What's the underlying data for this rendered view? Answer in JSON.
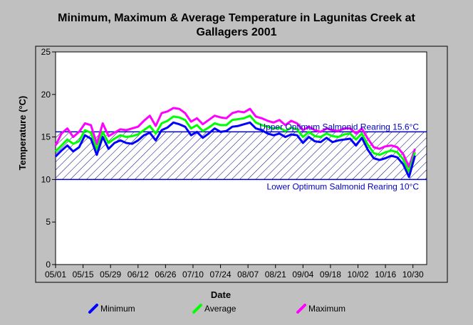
{
  "chart_data": {
    "type": "line",
    "title_lines": [
      "Minimum, Maximum & Average Temperature in Lagunitas Creek at",
      "Gallagers 2001"
    ],
    "xlabel": "Date",
    "ylabel": "Temperature (°C)",
    "ylim": [
      0,
      25
    ],
    "yticks": [
      0,
      5,
      10,
      15,
      20,
      25
    ],
    "xlim": [
      "2001-05-01",
      "2001-11-06"
    ],
    "xticks": [
      "05/01",
      "05/15",
      "05/29",
      "06/12",
      "06/26",
      "07/10",
      "07/24",
      "08/07",
      "08/21",
      "09/04",
      "09/18",
      "10/02",
      "10/16",
      "10/30"
    ],
    "grid": false,
    "legend_position": "bottom",
    "annotations": [
      {
        "text": "Upper Optimum Salmonid Rearing 15.6°C",
        "y": 15.6
      },
      {
        "text": "Lower Optimum Salmonid Rearing 10°C",
        "y": 10
      }
    ],
    "band": {
      "y_low": 10,
      "y_high": 15.6,
      "fill": "hatched",
      "color": "#0000c0"
    },
    "dates": [
      "05/01",
      "05/04",
      "05/07",
      "05/10",
      "05/13",
      "05/16",
      "05/19",
      "05/22",
      "05/25",
      "05/28",
      "05/31",
      "06/03",
      "06/06",
      "06/09",
      "06/12",
      "06/15",
      "06/18",
      "06/21",
      "06/24",
      "06/27",
      "06/30",
      "07/03",
      "07/06",
      "07/09",
      "07/12",
      "07/15",
      "07/18",
      "07/21",
      "07/24",
      "07/27",
      "07/30",
      "08/02",
      "08/05",
      "08/08",
      "08/11",
      "08/14",
      "08/17",
      "08/20",
      "08/23",
      "08/26",
      "08/29",
      "09/01",
      "09/04",
      "09/07",
      "09/10",
      "09/13",
      "09/16",
      "09/19",
      "09/22",
      "09/25",
      "09/28",
      "10/01",
      "10/04",
      "10/07",
      "10/10",
      "10/13",
      "10/16",
      "10/19",
      "10/22",
      "10/25",
      "10/28",
      "10/31"
    ],
    "series": [
      {
        "name": "Minimum",
        "color": "#0000ff",
        "values": [
          12.7,
          13.4,
          14.0,
          13.3,
          13.8,
          15.2,
          14.8,
          12.9,
          15.0,
          13.6,
          14.3,
          14.6,
          14.3,
          14.2,
          14.6,
          15.2,
          15.5,
          14.6,
          15.8,
          16.1,
          16.7,
          16.5,
          16.2,
          15.2,
          15.6,
          14.9,
          15.4,
          16.0,
          15.6,
          15.7,
          16.2,
          16.3,
          16.5,
          16.7,
          16.0,
          15.8,
          15.4,
          15.2,
          15.4,
          15.0,
          15.3,
          15.2,
          14.3,
          15.0,
          14.5,
          14.4,
          14.9,
          14.4,
          14.6,
          14.7,
          14.8,
          14.0,
          14.9,
          13.5,
          12.5,
          12.3,
          12.5,
          12.8,
          12.6,
          11.8,
          10.3,
          12.8
        ]
      },
      {
        "name": "Average",
        "color": "#00ff00",
        "values": [
          13.3,
          14.0,
          14.7,
          14.2,
          14.5,
          15.8,
          15.5,
          13.5,
          15.6,
          14.3,
          14.8,
          15.2,
          15.0,
          15.1,
          15.3,
          15.8,
          16.3,
          15.4,
          16.6,
          16.9,
          17.4,
          17.3,
          17.0,
          16.0,
          16.4,
          15.7,
          16.1,
          16.6,
          16.4,
          16.4,
          17.0,
          17.1,
          17.2,
          17.5,
          16.7,
          16.4,
          16.2,
          16.0,
          16.1,
          15.7,
          16.1,
          15.9,
          15.0,
          15.6,
          15.1,
          15.0,
          15.4,
          15.1,
          15.0,
          15.3,
          15.4,
          14.7,
          15.4,
          14.1,
          13.1,
          12.9,
          13.2,
          13.4,
          13.2,
          12.4,
          10.9,
          13.2
        ]
      },
      {
        "name": "Maximum",
        "color": "#ff00ff",
        "values": [
          14.0,
          15.4,
          16.0,
          15.0,
          15.6,
          16.6,
          16.4,
          14.2,
          16.6,
          15.1,
          15.5,
          15.9,
          15.8,
          16.0,
          16.2,
          16.9,
          17.5,
          16.3,
          17.8,
          18.0,
          18.4,
          18.3,
          17.8,
          16.8,
          17.2,
          16.5,
          17.0,
          17.5,
          17.3,
          17.2,
          17.8,
          18.0,
          17.9,
          18.3,
          17.4,
          17.2,
          16.9,
          16.7,
          17.0,
          16.4,
          16.9,
          16.6,
          15.8,
          16.2,
          15.8,
          15.6,
          16.0,
          15.8,
          15.7,
          16.0,
          16.0,
          15.4,
          16.0,
          14.8,
          13.8,
          13.6,
          13.9,
          14.0,
          13.8,
          13.0,
          11.5,
          13.6
        ]
      }
    ]
  }
}
